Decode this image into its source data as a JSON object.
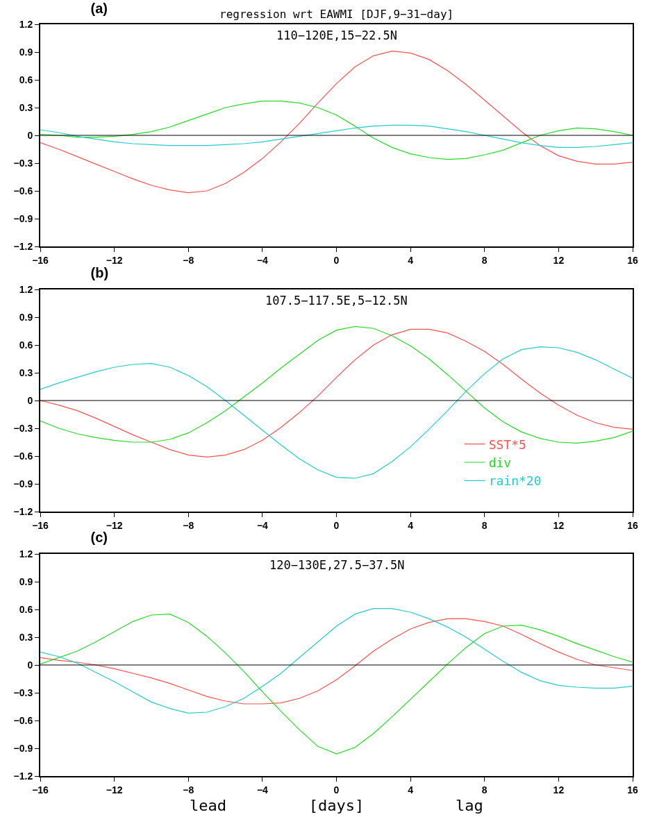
{
  "chart_data": [
    {
      "type": "line",
      "title": "(a)",
      "subtitle": "110−120E,15−22.5N",
      "annotations": [
        "regression wrt EAWMI [DJF,9−31−day]"
      ],
      "x": [
        -16,
        -15,
        -14,
        -13,
        -12,
        -11,
        -10,
        -9,
        -8,
        -7,
        -6,
        -5,
        -4,
        -3,
        -2,
        -1,
        0,
        1,
        2,
        3,
        4,
        5,
        6,
        7,
        8,
        9,
        10,
        11,
        12,
        13,
        14,
        15,
        16
      ],
      "xlim": [
        -16,
        16
      ],
      "xticks": [
        -16,
        -12,
        -8,
        -4,
        0,
        4,
        8,
        12,
        16
      ],
      "ylim": [
        -1.2,
        1.2
      ],
      "yticks": [
        -1.2,
        -0.9,
        -0.6,
        -0.3,
        0,
        0.3,
        0.6,
        0.9,
        1.2
      ],
      "grid": false,
      "legend": false,
      "ref_lines": [
        {
          "axis": "y",
          "value": 0,
          "color": "#000000"
        }
      ],
      "series": [
        {
          "color": "#ff5050",
          "values": [
            -0.08,
            -0.15,
            -0.23,
            -0.31,
            -0.39,
            -0.47,
            -0.54,
            -0.59,
            -0.62,
            -0.6,
            -0.52,
            -0.4,
            -0.25,
            -0.07,
            0.13,
            0.35,
            0.56,
            0.74,
            0.86,
            0.91,
            0.89,
            0.82,
            0.7,
            0.55,
            0.38,
            0.21,
            0.04,
            -0.11,
            -0.22,
            -0.28,
            -0.31,
            -0.31,
            -0.29
          ]
        },
        {
          "color": "#22dd22",
          "values": [
            0.01,
            0,
            -0.02,
            -0.02,
            -0.01,
            0.01,
            0.04,
            0.09,
            0.16,
            0.23,
            0.3,
            0.34,
            0.37,
            0.37,
            0.35,
            0.3,
            0.22,
            0.1,
            -0.03,
            -0.13,
            -0.2,
            -0.24,
            -0.26,
            -0.25,
            -0.21,
            -0.16,
            -0.08,
            0,
            0.05,
            0.08,
            0.07,
            0.04,
            0
          ]
        },
        {
          "color": "#22cccc",
          "values": [
            0.06,
            0.03,
            -0.01,
            -0.04,
            -0.07,
            -0.09,
            -0.1,
            -0.11,
            -0.11,
            -0.11,
            -0.1,
            -0.09,
            -0.07,
            -0.04,
            -0.01,
            0.02,
            0.05,
            0.08,
            0.1,
            0.11,
            0.11,
            0.1,
            0.07,
            0.04,
            0,
            -0.04,
            -0.08,
            -0.11,
            -0.13,
            -0.13,
            -0.12,
            -0.1,
            -0.08
          ]
        }
      ]
    },
    {
      "type": "line",
      "title": "(b)",
      "subtitle": "107.5−117.5E,5−12.5N",
      "x": [
        -16,
        -15,
        -14,
        -13,
        -12,
        -11,
        -10,
        -9,
        -8,
        -7,
        -6,
        -5,
        -4,
        -3,
        -2,
        -1,
        0,
        1,
        2,
        3,
        4,
        5,
        6,
        7,
        8,
        9,
        10,
        11,
        12,
        13,
        14,
        15,
        16
      ],
      "xlim": [
        -16,
        16
      ],
      "xticks": [
        -16,
        -12,
        -8,
        -4,
        0,
        4,
        8,
        12,
        16
      ],
      "ylim": [
        -1.2,
        1.2
      ],
      "yticks": [
        -1.2,
        -0.9,
        -0.6,
        -0.3,
        0,
        0.3,
        0.6,
        0.9,
        1.2
      ],
      "grid": false,
      "legend": "bottom right",
      "ref_lines": [
        {
          "axis": "y",
          "value": 0,
          "color": "#000000"
        }
      ],
      "series": [
        {
          "name": "SST*5",
          "color": "#ff5050",
          "values": [
            0,
            -0.05,
            -0.11,
            -0.19,
            -0.28,
            -0.37,
            -0.45,
            -0.53,
            -0.59,
            -0.61,
            -0.59,
            -0.53,
            -0.43,
            -0.29,
            -0.13,
            0.05,
            0.25,
            0.44,
            0.6,
            0.71,
            0.77,
            0.77,
            0.73,
            0.64,
            0.53,
            0.39,
            0.23,
            0.08,
            -0.05,
            -0.16,
            -0.24,
            -0.29,
            -0.31
          ]
        },
        {
          "name": "div",
          "color": "#22dd22",
          "values": [
            -0.22,
            -0.3,
            -0.36,
            -0.4,
            -0.43,
            -0.45,
            -0.45,
            -0.42,
            -0.35,
            -0.24,
            -0.11,
            0.04,
            0.19,
            0.35,
            0.5,
            0.65,
            0.76,
            0.8,
            0.78,
            0.7,
            0.59,
            0.45,
            0.28,
            0.1,
            -0.08,
            -0.23,
            -0.34,
            -0.41,
            -0.45,
            -0.46,
            -0.44,
            -0.4,
            -0.33
          ]
        },
        {
          "name": "rain*20",
          "color": "#22cccc",
          "values": [
            0.12,
            0.19,
            0.25,
            0.31,
            0.36,
            0.39,
            0.4,
            0.36,
            0.27,
            0.15,
            0,
            -0.16,
            -0.32,
            -0.48,
            -0.63,
            -0.75,
            -0.83,
            -0.84,
            -0.79,
            -0.66,
            -0.5,
            -0.31,
            -0.11,
            0.1,
            0.29,
            0.45,
            0.55,
            0.58,
            0.57,
            0.52,
            0.44,
            0.34,
            0.24
          ]
        }
      ]
    },
    {
      "type": "line",
      "title": "(c)",
      "subtitle": "120−130E,27.5−37.5N",
      "xlabel": "[days]",
      "annotations": [
        "lead",
        "lag"
      ],
      "x": [
        -16,
        -15,
        -14,
        -13,
        -12,
        -11,
        -10,
        -9,
        -8,
        -7,
        -6,
        -5,
        -4,
        -3,
        -2,
        -1,
        0,
        1,
        2,
        3,
        4,
        5,
        6,
        7,
        8,
        9,
        10,
        11,
        12,
        13,
        14,
        15,
        16
      ],
      "xlim": [
        -16,
        16
      ],
      "xticks": [
        -16,
        -12,
        -8,
        -4,
        0,
        4,
        8,
        12,
        16
      ],
      "ylim": [
        -1.2,
        1.2
      ],
      "yticks": [
        -1.2,
        -0.9,
        -0.6,
        -0.3,
        0,
        0.3,
        0.6,
        0.9,
        1.2
      ],
      "grid": false,
      "legend": false,
      "ref_lines": [
        {
          "axis": "y",
          "value": 0,
          "color": "#000000"
        }
      ],
      "series": [
        {
          "color": "#ff5050",
          "values": [
            0.08,
            0.05,
            0.03,
            0,
            -0.04,
            -0.09,
            -0.14,
            -0.2,
            -0.27,
            -0.34,
            -0.39,
            -0.42,
            -0.42,
            -0.41,
            -0.36,
            -0.28,
            -0.16,
            -0.01,
            0.15,
            0.28,
            0.39,
            0.46,
            0.5,
            0.5,
            0.47,
            0.42,
            0.33,
            0.23,
            0.14,
            0.06,
            0,
            -0.03,
            -0.06
          ]
        },
        {
          "color": "#22dd22",
          "values": [
            0.01,
            0.08,
            0.15,
            0.25,
            0.36,
            0.47,
            0.54,
            0.55,
            0.46,
            0.31,
            0.13,
            -0.07,
            -0.29,
            -0.5,
            -0.7,
            -0.88,
            -0.96,
            -0.89,
            -0.74,
            -0.56,
            -0.37,
            -0.18,
            0.01,
            0.19,
            0.34,
            0.42,
            0.43,
            0.38,
            0.31,
            0.23,
            0.16,
            0.09,
            0.03
          ]
        },
        {
          "color": "#22cccc",
          "values": [
            0.14,
            0.09,
            0.02,
            -0.08,
            -0.18,
            -0.29,
            -0.4,
            -0.47,
            -0.52,
            -0.51,
            -0.45,
            -0.36,
            -0.23,
            -0.09,
            0.08,
            0.25,
            0.42,
            0.55,
            0.61,
            0.61,
            0.57,
            0.5,
            0.41,
            0.3,
            0.17,
            0.04,
            -0.08,
            -0.17,
            -0.22,
            -0.24,
            -0.25,
            -0.25,
            -0.23
          ]
        }
      ]
    }
  ]
}
